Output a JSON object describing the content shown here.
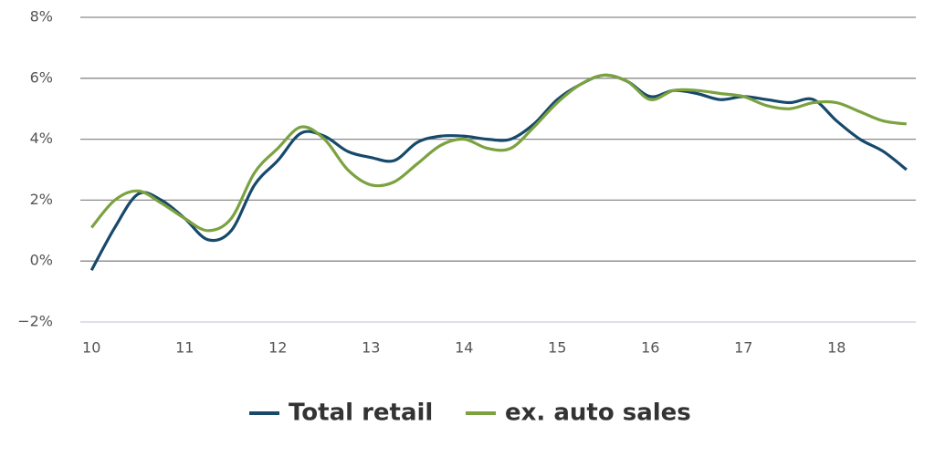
{
  "chart_data": {
    "type": "line",
    "x": [
      10,
      10.25,
      10.5,
      10.75,
      11,
      11.25,
      11.5,
      11.75,
      12,
      12.25,
      12.5,
      12.75,
      13,
      13.25,
      13.5,
      13.75,
      14,
      14.25,
      14.5,
      14.75,
      15,
      15.25,
      15.5,
      15.75,
      16,
      16.25,
      16.5,
      16.75,
      17,
      17.25,
      17.5,
      17.75,
      18,
      18.25,
      18.5,
      18.75
    ],
    "series": [
      {
        "name": "Total retail",
        "color": "#17496b",
        "values": [
          -0.3,
          1.1,
          2.2,
          2.0,
          1.4,
          0.7,
          1.0,
          2.5,
          3.3,
          4.2,
          4.1,
          3.6,
          3.4,
          3.3,
          3.9,
          4.1,
          4.1,
          4.0,
          4.0,
          4.5,
          5.3,
          5.8,
          6.1,
          5.9,
          5.4,
          5.6,
          5.5,
          5.3,
          5.4,
          5.3,
          5.2,
          5.3,
          4.6,
          4.0,
          3.6,
          3.0
        ]
      },
      {
        "name": "ex. auto sales",
        "color": "#7ba23f",
        "values": [
          1.1,
          2.0,
          2.3,
          1.9,
          1.4,
          1.0,
          1.4,
          2.9,
          3.7,
          4.4,
          4.0,
          3.0,
          2.5,
          2.6,
          3.2,
          3.8,
          4.0,
          3.7,
          3.7,
          4.4,
          5.2,
          5.8,
          6.1,
          5.9,
          5.3,
          5.6,
          5.6,
          5.5,
          5.4,
          5.1,
          5.0,
          5.2,
          5.2,
          4.9,
          4.6,
          4.5
        ]
      }
    ],
    "xlim": [
      9.88,
      18.85
    ],
    "xticks": [
      10,
      11,
      12,
      13,
      14,
      15,
      16,
      17,
      18
    ],
    "ylim": [
      -2,
      8
    ],
    "yticks": [
      {
        "value": -2,
        "label": "−2%"
      },
      {
        "value": 0,
        "label": "0%"
      },
      {
        "value": 2,
        "label": "2%"
      },
      {
        "value": 4,
        "label": "4%"
      },
      {
        "value": 6,
        "label": "6%"
      },
      {
        "value": 8,
        "label": "8%"
      }
    ],
    "grid": true,
    "legend": "bottom"
  }
}
